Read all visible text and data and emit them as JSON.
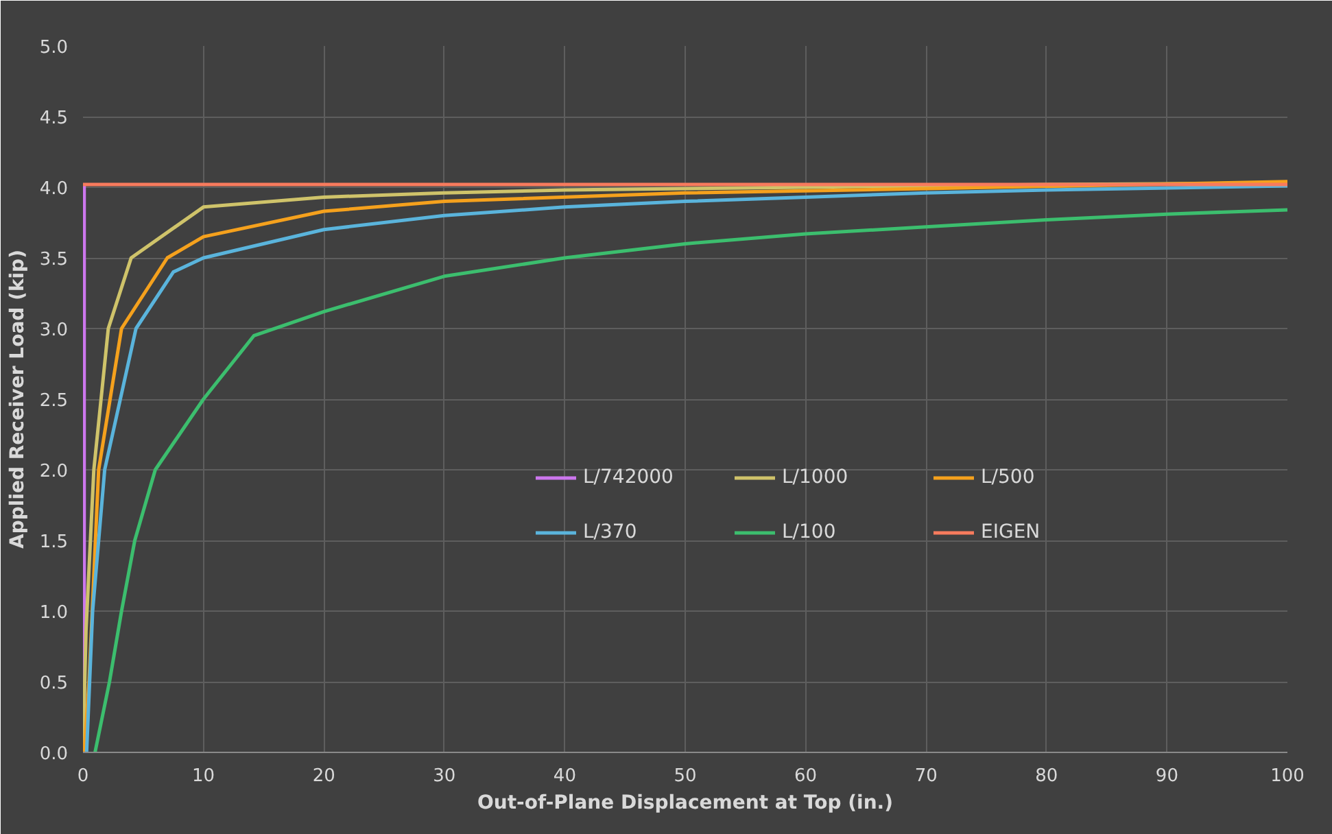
{
  "chart_data": {
    "type": "line",
    "xlabel": "Out-of-Plane Displacement at Top (in.)",
    "ylabel": "Applied Receiver Load (kip)",
    "xlim": [
      0,
      100
    ],
    "ylim": [
      0,
      5.0
    ],
    "xticks": [
      0,
      10,
      20,
      30,
      40,
      50,
      60,
      70,
      80,
      90,
      100
    ],
    "yticks": [
      {
        "value": 0,
        "label": "0.0"
      },
      {
        "value": 0.5,
        "label": "0.5"
      },
      {
        "value": 1,
        "label": "1.0"
      },
      {
        "value": 1.5,
        "label": "1.5"
      },
      {
        "value": 2,
        "label": "2.0"
      },
      {
        "value": 2.5,
        "label": "2.5"
      },
      {
        "value": 3,
        "label": "3.0"
      },
      {
        "value": 3.5,
        "label": "3.5"
      },
      {
        "value": 4,
        "label": "4.0"
      },
      {
        "value": 4.5,
        "label": "4.5"
      },
      {
        "value": 5,
        "label": "5.0"
      }
    ],
    "grid": true,
    "legend": "center right",
    "marker": "none",
    "line_style": "solid",
    "series": [
      {
        "name": "L/742000",
        "color": "#cc77ee",
        "x": [
          0,
          0.1,
          0.1
        ],
        "values": [
          0,
          0.2,
          4.02
        ]
      },
      {
        "name": "L/1000",
        "color": "#cfc36a",
        "x": [
          0,
          0.25,
          0.9,
          2.1,
          4,
          10,
          20,
          30,
          40,
          60,
          80,
          100
        ],
        "values": [
          0,
          0.86,
          2.0,
          3.0,
          3.5,
          3.86,
          3.93,
          3.96,
          3.98,
          4.0,
          4.02,
          4.03
        ]
      },
      {
        "name": "L/500",
        "color": "#f5a11d",
        "x": [
          0.1,
          0.5,
          1.3,
          3.2,
          7,
          10,
          20,
          30,
          50,
          70,
          100
        ],
        "values": [
          0,
          0.5,
          2.0,
          3.0,
          3.5,
          3.65,
          3.83,
          3.9,
          3.96,
          3.99,
          4.04
        ]
      },
      {
        "name": "L/370",
        "color": "#5ab4dc",
        "x": [
          0.3,
          0.8,
          1.8,
          4.4,
          7.5,
          10,
          20,
          30,
          40,
          50,
          60,
          70,
          80,
          100
        ],
        "values": [
          0,
          1.0,
          2.0,
          3.0,
          3.4,
          3.5,
          3.7,
          3.8,
          3.86,
          3.9,
          3.93,
          3.96,
          3.98,
          4.01
        ]
      },
      {
        "name": "L/100",
        "color": "#3cbe6e",
        "x": [
          1,
          2.2,
          3.2,
          4.3,
          6,
          10,
          14.2,
          20,
          30,
          40,
          50,
          60,
          70,
          80,
          90,
          100
        ],
        "values": [
          0,
          0.5,
          1.0,
          1.5,
          2.0,
          2.5,
          2.95,
          3.12,
          3.37,
          3.5,
          3.6,
          3.67,
          3.72,
          3.77,
          3.81,
          3.84
        ]
      },
      {
        "name": "EIGEN",
        "color": "#f77b5d",
        "x": [
          0,
          100
        ],
        "values": [
          4.02,
          4.02
        ]
      }
    ]
  }
}
